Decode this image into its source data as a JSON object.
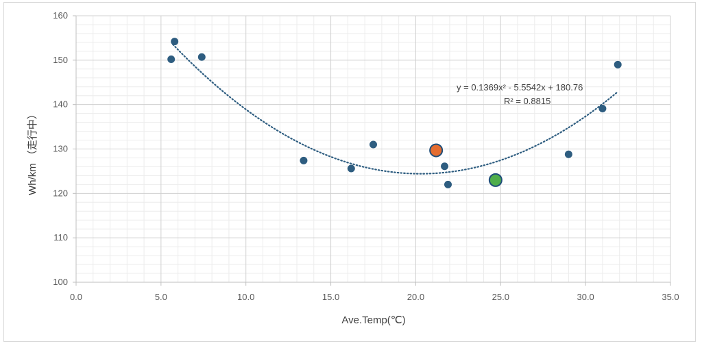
{
  "chart_data": {
    "type": "scatter",
    "title": "",
    "xlabel": "Ave.Temp(℃)",
    "ylabel": "Wh/km （走行中）",
    "xlim": [
      0,
      35
    ],
    "ylim": [
      100,
      160
    ],
    "x_ticks": [
      "0.0",
      "5.0",
      "10.0",
      "15.0",
      "20.0",
      "25.0",
      "30.0",
      "35.0"
    ],
    "y_ticks": [
      "100",
      "110",
      "120",
      "130",
      "140",
      "150",
      "160"
    ],
    "grid": true,
    "series": [
      {
        "color": "#2e5d80",
        "points": [
          {
            "x": 5.6,
            "y": 150.2
          },
          {
            "x": 5.8,
            "y": 154.2
          },
          {
            "x": 7.4,
            "y": 150.7
          },
          {
            "x": 13.4,
            "y": 127.4
          },
          {
            "x": 16.2,
            "y": 125.6
          },
          {
            "x": 17.5,
            "y": 131.0
          },
          {
            "x": 21.7,
            "y": 126.1
          },
          {
            "x": 21.9,
            "y": 122.0
          },
          {
            "x": 29.0,
            "y": 128.8
          },
          {
            "x": 31.0,
            "y": 139.1
          },
          {
            "x": 31.9,
            "y": 149.0
          }
        ]
      },
      {
        "color": "#e46c2f",
        "points": [
          {
            "x": 21.2,
            "y": 129.7
          }
        ]
      },
      {
        "color": "#4fae4b",
        "points": [
          {
            "x": 24.7,
            "y": 123.0
          }
        ]
      }
    ],
    "trendline": {
      "type": "polynomial",
      "coefficients": [
        0.1369,
        -5.5542,
        180.76
      ],
      "x_range": [
        5.7,
        31.9
      ],
      "color": "#2e5d80",
      "equation_line1": "y = 0.1369x² - 5.5542x + 180.76",
      "equation_line2": "R² = 0.8815"
    }
  }
}
